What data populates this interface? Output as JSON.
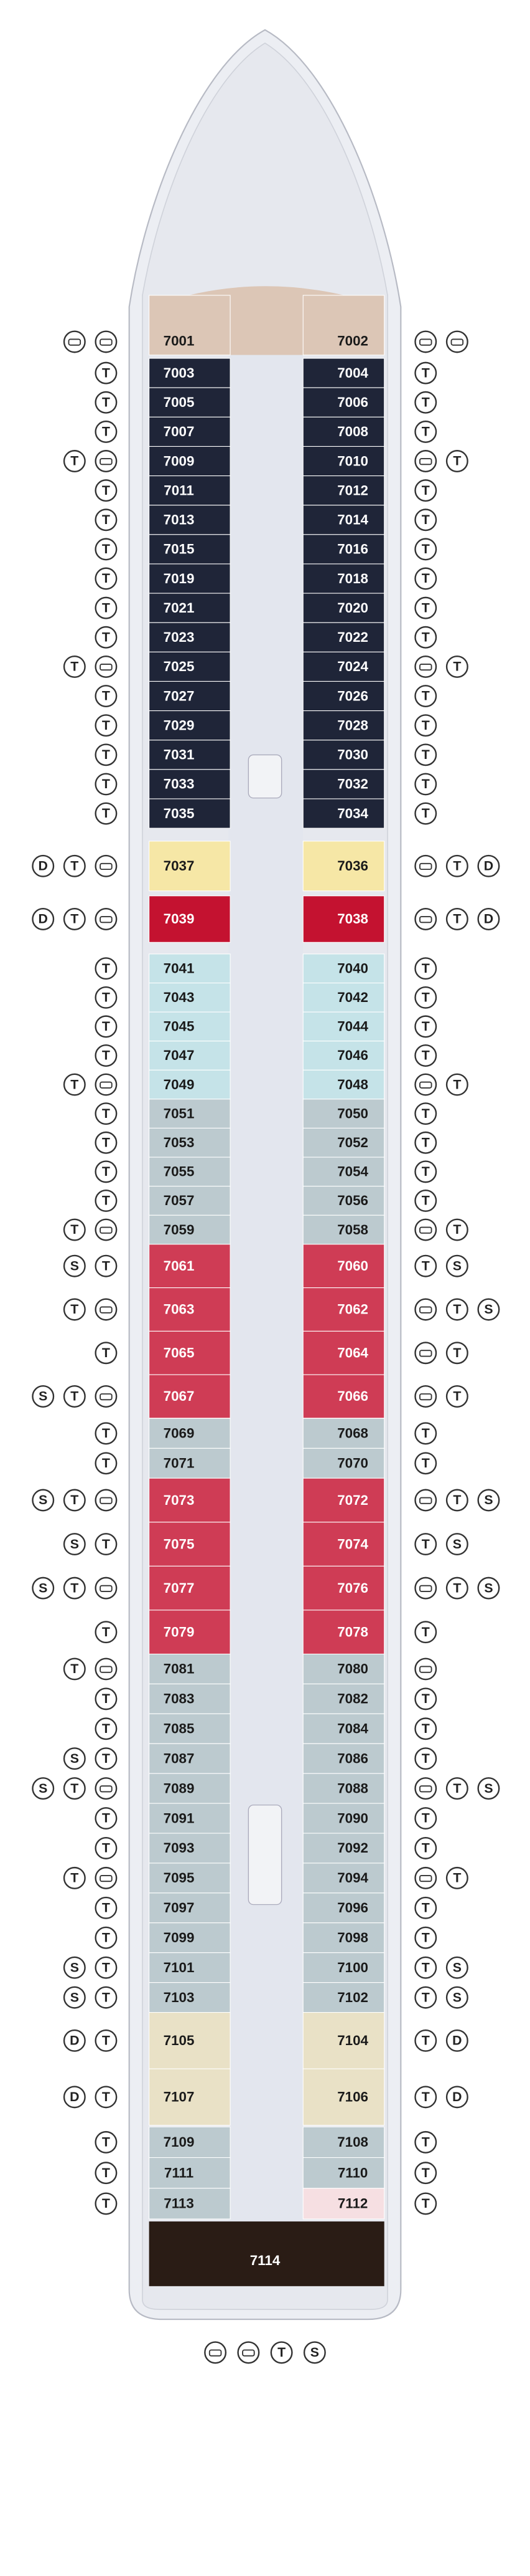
{
  "deck": {
    "rows": [
      {
        "left": "7001",
        "right": "7002",
        "left_icons": [
          null,
          null
        ],
        "right_icons": [
          null,
          null
        ],
        "colors": [
          "#dcc6b6",
          "#dcc6b6"
        ]
      },
      {
        "left": "7003",
        "right": "7004",
        "left_icons": [
          "T"
        ],
        "right_icons": [
          "T"
        ],
        "colors": [
          "#1f2538",
          "#1f2538"
        ]
      },
      {
        "left": "7005",
        "right": "7006",
        "left_icons": [
          "T"
        ],
        "right_icons": [
          "T"
        ],
        "colors": [
          "#1f2538",
          "#1f2538"
        ]
      },
      {
        "left": "7007",
        "right": "7008",
        "left_icons": [
          "T"
        ],
        "right_icons": [
          "T"
        ],
        "colors": [
          "#1f2538",
          "#1f2538"
        ]
      },
      {
        "left": "7009",
        "right": "7010",
        "left_icons": [
          null,
          "T"
        ],
        "right_icons": [
          null,
          "T"
        ],
        "colors": [
          "#1f2538",
          "#1f2538"
        ]
      },
      {
        "left": "7011",
        "right": "7012",
        "left_icons": [
          "T"
        ],
        "right_icons": [
          "T"
        ],
        "colors": [
          "#1f2538",
          "#1f2538"
        ]
      },
      {
        "left": "7013",
        "right": "7014",
        "left_icons": [
          "T"
        ],
        "right_icons": [
          "T"
        ],
        "colors": [
          "#1f2538",
          "#1f2538"
        ]
      },
      {
        "left": "7015",
        "right": "7016",
        "left_icons": [
          "T"
        ],
        "right_icons": [
          "T"
        ],
        "colors": [
          "#1f2538",
          "#1f2538"
        ]
      },
      {
        "left": "7019",
        "right": "7018",
        "left_icons": [
          "T"
        ],
        "right_icons": [
          "T"
        ],
        "colors": [
          "#1f2538",
          "#1f2538"
        ]
      },
      {
        "left": "7021",
        "right": "7020",
        "left_icons": [
          "T"
        ],
        "right_icons": [
          "T"
        ],
        "colors": [
          "#1f2538",
          "#1f2538"
        ]
      },
      {
        "left": "7023",
        "right": "7022",
        "left_icons": [
          "T"
        ],
        "right_icons": [
          "T"
        ],
        "colors": [
          "#1f2538",
          "#1f2538"
        ]
      },
      {
        "left": "7025",
        "right": "7024",
        "left_icons": [
          null,
          "T"
        ],
        "right_icons": [
          null,
          "T"
        ],
        "colors": [
          "#1f2538",
          "#1f2538"
        ]
      },
      {
        "left": "7027",
        "right": "7026",
        "left_icons": [
          "T"
        ],
        "right_icons": [
          "T"
        ],
        "colors": [
          "#1f2538",
          "#1f2538"
        ]
      },
      {
        "left": "7029",
        "right": "7028",
        "left_icons": [
          "T"
        ],
        "right_icons": [
          "T"
        ],
        "colors": [
          "#1f2538",
          "#1f2538"
        ]
      },
      {
        "left": "7031",
        "right": "7030",
        "left_icons": [
          "T"
        ],
        "right_icons": [
          "T"
        ],
        "colors": [
          "#1f2538",
          "#1f2538"
        ]
      },
      {
        "left": "7033",
        "right": "7032",
        "left_icons": [
          "T"
        ],
        "right_icons": [
          "T"
        ],
        "colors": [
          "#1f2538",
          "#1f2538"
        ]
      },
      {
        "left": "7035",
        "right": "7034",
        "left_icons": [
          "T"
        ],
        "right_icons": [
          "T"
        ],
        "colors": [
          "#1f2538",
          "#1f2538"
        ]
      },
      {
        "left": "7037",
        "right": "7036",
        "left_icons": [
          null,
          "T",
          "D"
        ],
        "right_icons": [
          null,
          "T",
          "D"
        ],
        "colors": [
          "#f6e7a6",
          "#f6e7a6"
        ]
      },
      {
        "left": "7039",
        "right": "7038",
        "left_icons": [
          null,
          "T",
          "D"
        ],
        "right_icons": [
          null,
          "T",
          "D"
        ],
        "colors": [
          "#c41230",
          "#c41230"
        ]
      },
      {
        "left": "7041",
        "right": "7040",
        "left_icons": [
          "T"
        ],
        "right_icons": [
          "T"
        ],
        "colors": [
          "#c5e3e8",
          "#c5e3e8"
        ]
      },
      {
        "left": "7043",
        "right": "7042",
        "left_icons": [
          "T"
        ],
        "right_icons": [
          "T"
        ],
        "colors": [
          "#c5e3e8",
          "#c5e3e8"
        ]
      },
      {
        "left": "7045",
        "right": "7044",
        "left_icons": [
          "T"
        ],
        "right_icons": [
          "T"
        ],
        "colors": [
          "#c5e3e8",
          "#c5e3e8"
        ]
      },
      {
        "left": "7047",
        "right": "7046",
        "left_icons": [
          "T"
        ],
        "right_icons": [
          "T"
        ],
        "colors": [
          "#c5e3e8",
          "#c5e3e8"
        ]
      },
      {
        "left": "7049",
        "right": "7048",
        "left_icons": [
          null,
          "T"
        ],
        "right_icons": [
          null,
          "T"
        ],
        "colors": [
          "#c5e3e8",
          "#c5e3e8"
        ]
      },
      {
        "left": "7051",
        "right": "7050",
        "left_icons": [
          "T"
        ],
        "right_icons": [
          "T"
        ],
        "colors": [
          "#bccacf",
          "#bccacf"
        ]
      },
      {
        "left": "7053",
        "right": "7052",
        "left_icons": [
          "T"
        ],
        "right_icons": [
          "T"
        ],
        "colors": [
          "#bccacf",
          "#bccacf"
        ]
      },
      {
        "left": "7055",
        "right": "7054",
        "left_icons": [
          "T"
        ],
        "right_icons": [
          "T"
        ],
        "colors": [
          "#bccacf",
          "#bccacf"
        ]
      },
      {
        "left": "7057",
        "right": "7056",
        "left_icons": [
          "T"
        ],
        "right_icons": [
          "T"
        ],
        "colors": [
          "#bccacf",
          "#bccacf"
        ]
      },
      {
        "left": "7059",
        "right": "7058",
        "left_icons": [
          null,
          "T"
        ],
        "right_icons": [
          null,
          "T"
        ],
        "colors": [
          "#bccacf",
          "#bccacf"
        ]
      },
      {
        "left": "7061",
        "right": "7060",
        "left_icons": [
          "T",
          "S"
        ],
        "right_icons": [
          "T",
          "S"
        ],
        "colors": [
          "#cf3c55",
          "#cf3c55"
        ]
      },
      {
        "left": "7063",
        "right": "7062",
        "left_icons": [
          null,
          "T"
        ],
        "right_icons": [
          null,
          "T",
          "S"
        ],
        "colors": [
          "#cf3c55",
          "#cf3c55"
        ]
      },
      {
        "left": "7065",
        "right": "7064",
        "left_icons": [
          "T"
        ],
        "right_icons": [
          null,
          "T"
        ],
        "colors": [
          "#cf3c55",
          "#cf3c55"
        ]
      },
      {
        "left": "7067",
        "right": "7066",
        "left_icons": [
          null,
          "T",
          "S"
        ],
        "right_icons": [
          null,
          "T"
        ],
        "colors": [
          "#cf3c55",
          "#cf3c55"
        ]
      },
      {
        "left": "7069",
        "right": "7068",
        "left_icons": [
          "T"
        ],
        "right_icons": [
          "T"
        ],
        "colors": [
          "#bccacf",
          "#bccacf"
        ]
      },
      {
        "left": "7071",
        "right": "7070",
        "left_icons": [
          "T"
        ],
        "right_icons": [
          "T"
        ],
        "colors": [
          "#bccacf",
          "#bccacf"
        ]
      },
      {
        "left": "7073",
        "right": "7072",
        "left_icons": [
          null,
          "T",
          "S"
        ],
        "right_icons": [
          null,
          "T",
          "S"
        ],
        "colors": [
          "#cf3c55",
          "#cf3c55"
        ]
      },
      {
        "left": "7075",
        "right": "7074",
        "left_icons": [
          "T",
          "S"
        ],
        "right_icons": [
          "T",
          "S"
        ],
        "colors": [
          "#cf3c55",
          "#cf3c55"
        ]
      },
      {
        "left": "7077",
        "right": "7076",
        "left_icons": [
          null,
          "T",
          "S"
        ],
        "right_icons": [
          null,
          "T",
          "S"
        ],
        "colors": [
          "#cf3c55",
          "#cf3c55"
        ]
      },
      {
        "left": "7079",
        "right": "7078",
        "left_icons": [
          "T"
        ],
        "right_icons": [
          "T"
        ],
        "colors": [
          "#cf3c55",
          "#cf3c55"
        ]
      },
      {
        "left": "7081",
        "right": "7080",
        "left_icons": [
          null,
          "T"
        ],
        "right_icons": [
          null
        ],
        "colors": [
          "#bccacf",
          "#bccacf"
        ]
      },
      {
        "left": "7083",
        "right": "7082",
        "left_icons": [
          "T"
        ],
        "right_icons": [
          "T"
        ],
        "colors": [
          "#bccacf",
          "#bccacf"
        ]
      },
      {
        "left": "7085",
        "right": "7084",
        "left_icons": [
          "T"
        ],
        "right_icons": [
          "T"
        ],
        "colors": [
          "#bccacf",
          "#bccacf"
        ]
      },
      {
        "left": "7087",
        "right": "7086",
        "left_icons": [
          "T",
          "S"
        ],
        "right_icons": [
          "T"
        ],
        "colors": [
          "#bccacf",
          "#bccacf"
        ]
      },
      {
        "left": "7089",
        "right": "7088",
        "left_icons": [
          null,
          "T",
          "S"
        ],
        "right_icons": [
          null,
          "T",
          "S"
        ],
        "colors": [
          "#bccacf",
          "#bccacf"
        ]
      },
      {
        "left": "7091",
        "right": "7090",
        "left_icons": [
          "T"
        ],
        "right_icons": [
          "T"
        ],
        "colors": [
          "#bccacf",
          "#bccacf"
        ]
      },
      {
        "left": "7093",
        "right": "7092",
        "left_icons": [
          "T"
        ],
        "right_icons": [
          "T"
        ],
        "colors": [
          "#bccacf",
          "#bccacf"
        ]
      },
      {
        "left": "7095",
        "right": "7094",
        "left_icons": [
          null,
          "T"
        ],
        "right_icons": [
          null,
          "T"
        ],
        "colors": [
          "#bccacf",
          "#bccacf"
        ]
      },
      {
        "left": "7097",
        "right": "7096",
        "left_icons": [
          "T"
        ],
        "right_icons": [
          "T"
        ],
        "colors": [
          "#bccacf",
          "#bccacf"
        ]
      },
      {
        "left": "7099",
        "right": "7098",
        "left_icons": [
          "T"
        ],
        "right_icons": [
          "T"
        ],
        "colors": [
          "#bccacf",
          "#bccacf"
        ]
      },
      {
        "left": "7101",
        "right": "7100",
        "left_icons": [
          "T",
          "S"
        ],
        "right_icons": [
          "T",
          "S"
        ],
        "colors": [
          "#bccacf",
          "#bccacf"
        ]
      },
      {
        "left": "7103",
        "right": "7102",
        "left_icons": [
          "T",
          "S"
        ],
        "right_icons": [
          "T",
          "S"
        ],
        "colors": [
          "#bccacf",
          "#bccacf"
        ]
      },
      {
        "left": "7105",
        "right": "7104",
        "left_icons": [
          "T",
          "D"
        ],
        "right_icons": [
          "T",
          "D"
        ],
        "colors": [
          "#e9e1c6",
          "#e9e1c6"
        ]
      },
      {
        "left": "7107",
        "right": "7106",
        "left_icons": [
          "T",
          "D"
        ],
        "right_icons": [
          "T",
          "D"
        ],
        "colors": [
          "#e9e1c6",
          "#e9e1c6"
        ]
      },
      {
        "left": "7109",
        "right": "7108",
        "left_icons": [
          "T"
        ],
        "right_icons": [
          "T"
        ],
        "colors": [
          "#bccacf",
          "#bccacf"
        ]
      },
      {
        "left": "7111",
        "right": "7110",
        "left_icons": [
          "T"
        ],
        "right_icons": [
          "T"
        ],
        "colors": [
          "#bccacf",
          "#bccacf"
        ]
      },
      {
        "left": "7113",
        "right": "7112",
        "left_icons": [
          "T"
        ],
        "right_icons": [
          "T"
        ],
        "colors": [
          "#bccacf",
          "#f6dfe2"
        ]
      }
    ],
    "stern": "7114",
    "stern_icons": [
      null,
      null,
      "T",
      "S"
    ]
  }
}
